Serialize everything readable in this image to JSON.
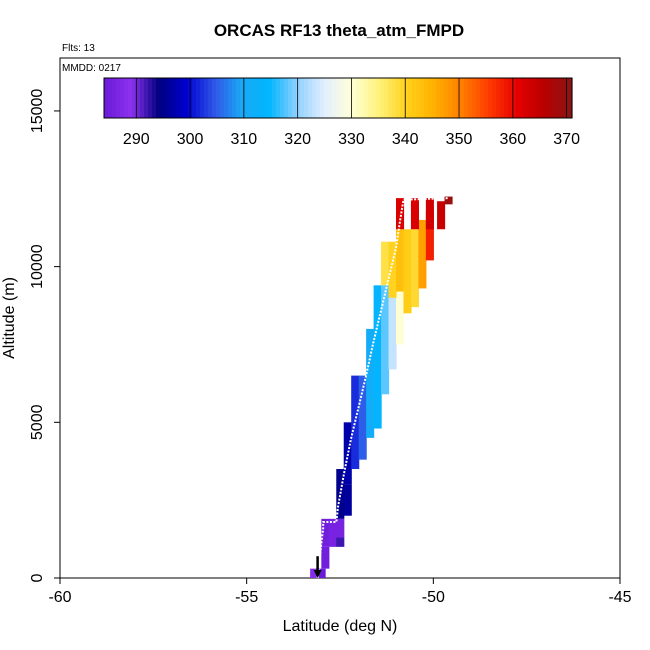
{
  "chart_data": {
    "type": "heatmap",
    "title": "ORCAS RF13 theta_atm_FMPD",
    "flights_label": "Flts: 13",
    "date_label": "MMDD: 0217",
    "xlabel": "Latitude (deg N)",
    "ylabel": "Altitude (m)",
    "xlim": [
      -60,
      -45
    ],
    "ylim": [
      0,
      16700
    ],
    "x_ticks": [
      -60,
      -55,
      -50,
      -45
    ],
    "x_tick_labels": [
      "-60",
      "-55",
      "-50",
      "-45"
    ],
    "y_ticks": [
      0,
      5000,
      10000,
      15000
    ],
    "y_tick_labels": [
      "0",
      "5000",
      "10000",
      "15000"
    ],
    "colorbar": {
      "range": [
        284,
        371
      ],
      "ticks": [
        290,
        300,
        310,
        320,
        330,
        340,
        350,
        360,
        370
      ],
      "tick_labels": [
        "290",
        "300",
        "310",
        "320",
        "330",
        "340",
        "350",
        "360",
        "370"
      ],
      "colors": [
        "#6a1ad8",
        "#8c32ee",
        "#000080",
        "#0000d0",
        "#2f55e6",
        "#1aa8f5",
        "#00b6ff",
        "#8fd0ff",
        "#e2efff",
        "#ffffd6",
        "#fff27a",
        "#ffd11a",
        "#ffb000",
        "#ff7e00",
        "#ff3a00",
        "#e60000",
        "#b80000",
        "#8a1616"
      ]
    },
    "cells": [
      {
        "lat": -53.2,
        "alt_min": 0,
        "alt_max": 300,
        "theta": 288
      },
      {
        "lat": -53.0,
        "alt_min": 0,
        "alt_max": 300,
        "theta": 284
      },
      {
        "lat": -52.9,
        "alt_min": 300,
        "alt_max": 1000,
        "theta": 285
      },
      {
        "lat": -52.9,
        "alt_min": 1000,
        "alt_max": 1900,
        "theta": 285
      },
      {
        "lat": -52.7,
        "alt_min": 1000,
        "alt_max": 1900,
        "theta": 286
      },
      {
        "lat": -52.5,
        "alt_min": 1000,
        "alt_max": 1300,
        "theta": 292
      },
      {
        "lat": -52.5,
        "alt_min": 1300,
        "alt_max": 1900,
        "theta": 286
      },
      {
        "lat": -52.5,
        "alt_min": 1900,
        "alt_max": 3500,
        "theta": 295
      },
      {
        "lat": -52.3,
        "alt_min": 2000,
        "alt_max": 3000,
        "theta": 296
      },
      {
        "lat": -52.3,
        "alt_min": 3000,
        "alt_max": 5000,
        "theta": 297
      },
      {
        "lat": -52.1,
        "alt_min": 3500,
        "alt_max": 6500,
        "theta": 302
      },
      {
        "lat": -51.9,
        "alt_min": 3800,
        "alt_max": 6500,
        "theta": 305
      },
      {
        "lat": -51.7,
        "alt_min": 4500,
        "alt_max": 8000,
        "theta": 311
      },
      {
        "lat": -51.5,
        "alt_min": 4800,
        "alt_max": 9400,
        "theta": 314
      },
      {
        "lat": -51.3,
        "alt_min": 5900,
        "alt_max": 9400,
        "theta": 318
      },
      {
        "lat": -51.1,
        "alt_min": 6700,
        "alt_max": 9400,
        "theta": 323
      },
      {
        "lat": -50.9,
        "alt_min": 7500,
        "alt_max": 9200,
        "theta": 330
      },
      {
        "lat": -51.3,
        "alt_min": 9400,
        "alt_max": 10800,
        "theta": 338
      },
      {
        "lat": -51.1,
        "alt_min": 9000,
        "alt_max": 10800,
        "theta": 340
      },
      {
        "lat": -50.9,
        "alt_min": 9200,
        "alt_max": 11200,
        "theta": 343
      },
      {
        "lat": -50.7,
        "alt_min": 8500,
        "alt_max": 11200,
        "theta": 341
      },
      {
        "lat": -50.5,
        "alt_min": 8700,
        "alt_max": 11200,
        "theta": 339
      },
      {
        "lat": -50.3,
        "alt_min": 9300,
        "alt_max": 11500,
        "theta": 347
      },
      {
        "lat": -50.1,
        "alt_min": 10200,
        "alt_max": 11800,
        "theta": 358
      },
      {
        "lat": -50.9,
        "alt_min": 11200,
        "alt_max": 12200,
        "theta": 362
      },
      {
        "lat": -50.5,
        "alt_min": 11200,
        "alt_max": 12200,
        "theta": 362
      },
      {
        "lat": -50.1,
        "alt_min": 11200,
        "alt_max": 12200,
        "theta": 363
      },
      {
        "lat": -49.8,
        "alt_min": 11200,
        "alt_max": 12100,
        "theta": 364
      },
      {
        "lat": -49.6,
        "alt_min": 12000,
        "alt_max": 12250,
        "theta": 369
      }
    ],
    "flight_track": [
      [
        -53.1,
        0
      ],
      [
        -53.05,
        500
      ],
      [
        -53.0,
        1100
      ],
      [
        -52.95,
        1600
      ],
      [
        -52.95,
        1800
      ],
      [
        -52.6,
        1800
      ],
      [
        -52.55,
        2300
      ],
      [
        -52.4,
        3300
      ],
      [
        -52.2,
        4500
      ],
      [
        -52.0,
        5500
      ],
      [
        -51.8,
        6500
      ],
      [
        -51.6,
        7600
      ],
      [
        -51.4,
        8600
      ],
      [
        -51.2,
        9600
      ],
      [
        -51.0,
        10600
      ],
      [
        -50.9,
        11400
      ],
      [
        -50.8,
        12150
      ],
      [
        -49.6,
        12200
      ]
    ],
    "descent_marker": {
      "lat": -53.1,
      "alt_top": 700,
      "alt_bottom": 0
    }
  }
}
